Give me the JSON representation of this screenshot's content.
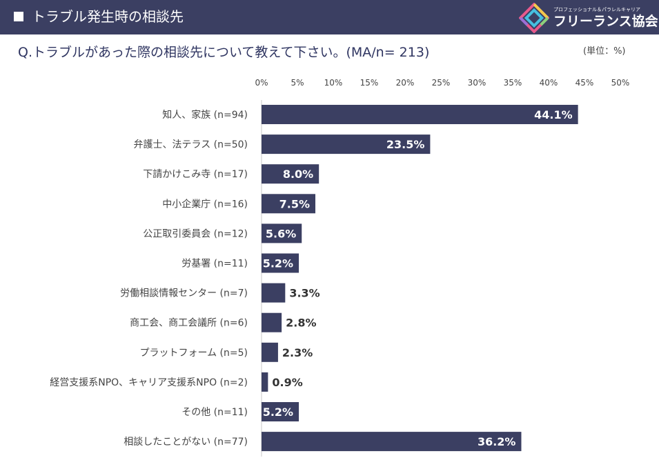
{
  "header": {
    "title": "トラブル発生時の相談先"
  },
  "logo": {
    "tagline": "プロフェッショナル＆パラレルキャリア",
    "name": "フリーランス協会"
  },
  "question": "Q.トラブルがあった際の相談先について教えて下さい。(MA/n= 213)",
  "unit": "(単位：%)",
  "colors": {
    "header_bg": "#3b3f62",
    "bar": "#3b3f62",
    "axis": "#c8c8c8"
  },
  "chart_data": {
    "type": "bar",
    "orientation": "horizontal",
    "title": "Q.トラブルがあった際の相談先について教えて下さい。(MA/n= 213)",
    "xlabel": "",
    "ylabel": "",
    "xlim": [
      0,
      50
    ],
    "ticks": [
      0,
      5,
      10,
      15,
      20,
      25,
      30,
      35,
      40,
      45,
      50
    ],
    "tick_labels": [
      "0%",
      "5%",
      "10%",
      "15%",
      "20%",
      "25%",
      "30%",
      "35%",
      "40%",
      "45%",
      "50%"
    ],
    "categories": [
      "知人、家族 (n=94)",
      "弁護士、法テラス (n=50)",
      "下請かけこみ寺 (n=17)",
      "中小企業庁 (n=16)",
      "公正取引委員会 (n=12)",
      "労基署 (n=11)",
      "労働相談情報センター (n=7)",
      "商工会、商工会議所 (n=6)",
      "プラットフォーム (n=5)",
      "経営支援系NPO、キャリア支援系NPO (n=2)",
      "その他 (n=11)",
      "相談したことがない (n=77)"
    ],
    "values": [
      44.1,
      23.5,
      8.0,
      7.5,
      5.6,
      5.2,
      3.3,
      2.8,
      2.3,
      0.9,
      5.2,
      36.2
    ],
    "value_labels": [
      "44.1%",
      "23.5%",
      "8.0%",
      "7.5%",
      "5.6%",
      "5.2%",
      "3.3%",
      "2.8%",
      "2.3%",
      "0.9%",
      "5.2%",
      "36.2%"
    ]
  }
}
